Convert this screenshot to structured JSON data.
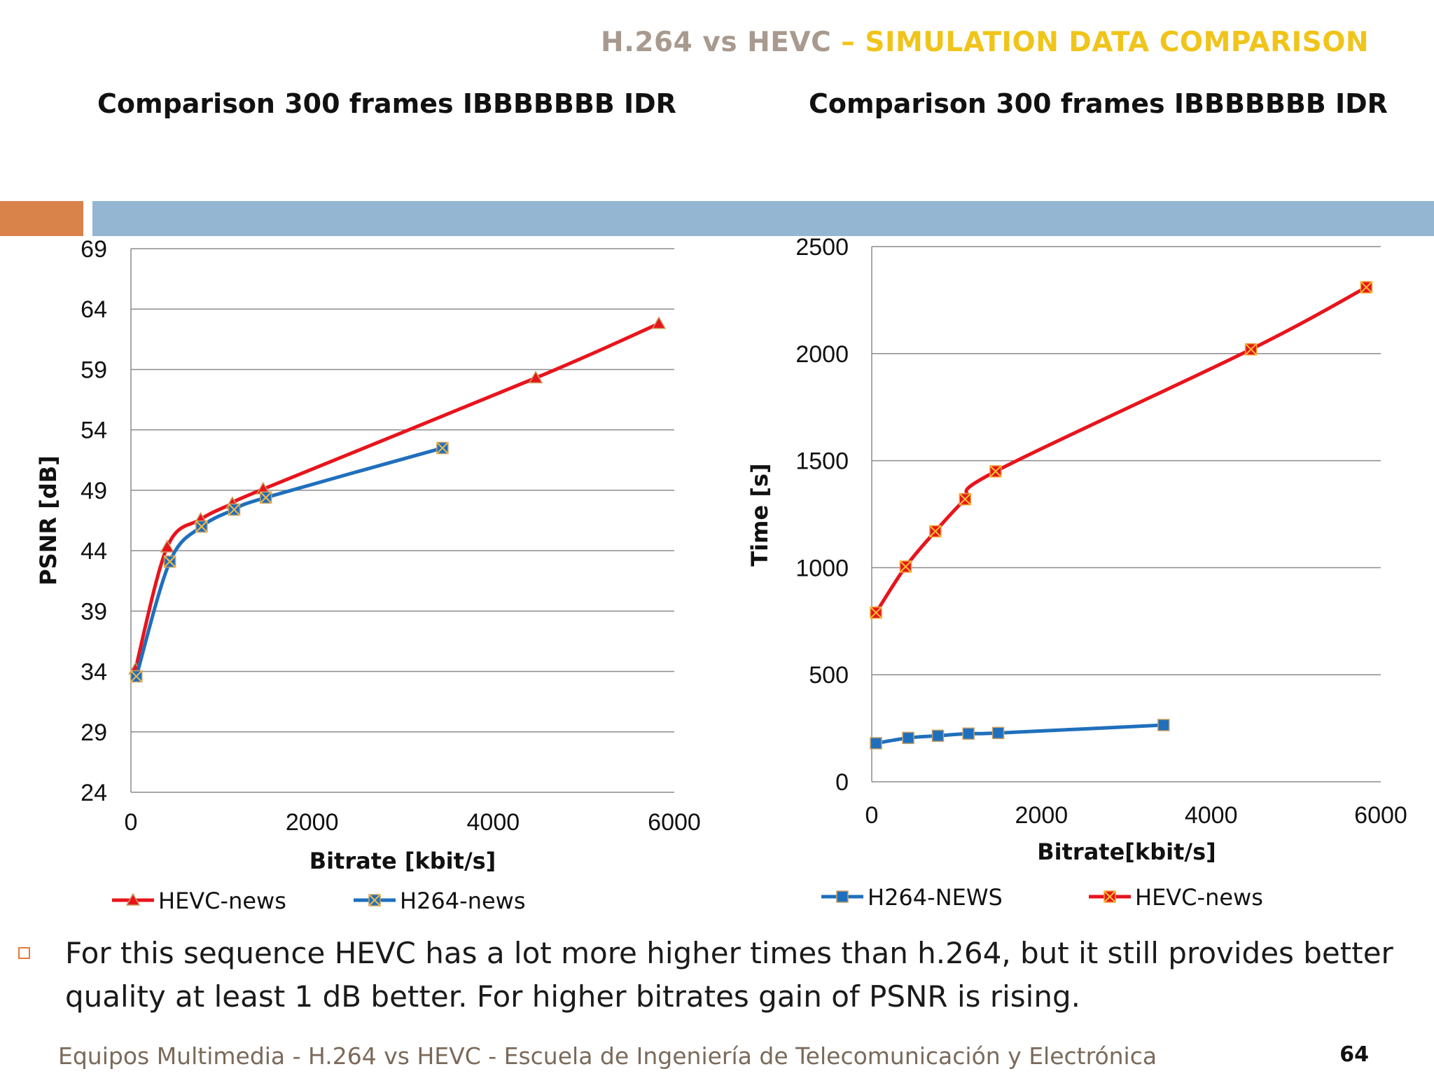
{
  "slide": {
    "title_part1": "H.264 vs HEVC",
    "title_part2": " – SIMULATION DATA COMPARISON",
    "left_subtitle": "Comparison 300 frames IBBBBBBB IDR",
    "right_subtitle": "Comparison 300 frames IBBBBBBB IDR",
    "bullet": "For this sequence HEVC has a lot more higher times than h.264, but it still provides better quality at least 1 dB better. For higher bitrates gain of PSNR is rising.",
    "footer": "Equipos Multimedia - H.264 vs HEVC - Escuela de Ingeniería de Telecomunicación y Electrónica",
    "page_number": "64",
    "colors": {
      "accent_orange": "#d9824a",
      "accent_blue": "#94b6d2",
      "title_gray": "#a89a8e",
      "title_yellow": "#f0c419"
    }
  },
  "chart_data": [
    {
      "type": "line",
      "xlabel": "Bitrate [kbit/s]",
      "ylabel": "PSNR [dB]",
      "xlim": [
        0,
        6000
      ],
      "ylim": [
        24,
        69
      ],
      "xticks": [
        0,
        2000,
        4000,
        6000
      ],
      "yticks": [
        24,
        29,
        34,
        39,
        44,
        49,
        54,
        59,
        64,
        69
      ],
      "grid": "horizontal",
      "legend": "bottom",
      "series": [
        {
          "name": "HEVC-news",
          "color": "#e8141c",
          "marker": "triangle",
          "x": [
            50,
            400,
            770,
            1120,
            1460,
            4470,
            5830
          ],
          "y": [
            34.2,
            44.3,
            46.6,
            47.9,
            49.1,
            58.3,
            62.8
          ]
        },
        {
          "name": "H264-news",
          "color": "#1f6fbd",
          "marker": "square-x",
          "x": [
            60,
            430,
            780,
            1140,
            1490,
            3440
          ],
          "y": [
            33.6,
            43.1,
            46.0,
            47.4,
            48.4,
            52.5
          ]
        }
      ]
    },
    {
      "type": "line",
      "xlabel": "Bitrate[kbit/s]",
      "ylabel": "Time [s]",
      "xlim": [
        0,
        6000
      ],
      "ylim": [
        0,
        2500
      ],
      "xticks": [
        0,
        2000,
        4000,
        6000
      ],
      "yticks": [
        0,
        500,
        1000,
        1500,
        2000,
        2500
      ],
      "grid": "horizontal",
      "legend": "bottom",
      "series": [
        {
          "name": "H264-NEWS",
          "color": "#1f6fbd",
          "marker": "square",
          "x": [
            50,
            430,
            780,
            1140,
            1490,
            3440
          ],
          "y": [
            180,
            205,
            215,
            225,
            228,
            265
          ]
        },
        {
          "name": "HEVC-news",
          "color": "#e8141c",
          "marker": "square-x",
          "x": [
            50,
            400,
            750,
            1100,
            1460,
            4470,
            5830
          ],
          "y": [
            790,
            1005,
            1170,
            1320,
            1450,
            2020,
            2310
          ]
        }
      ]
    }
  ]
}
